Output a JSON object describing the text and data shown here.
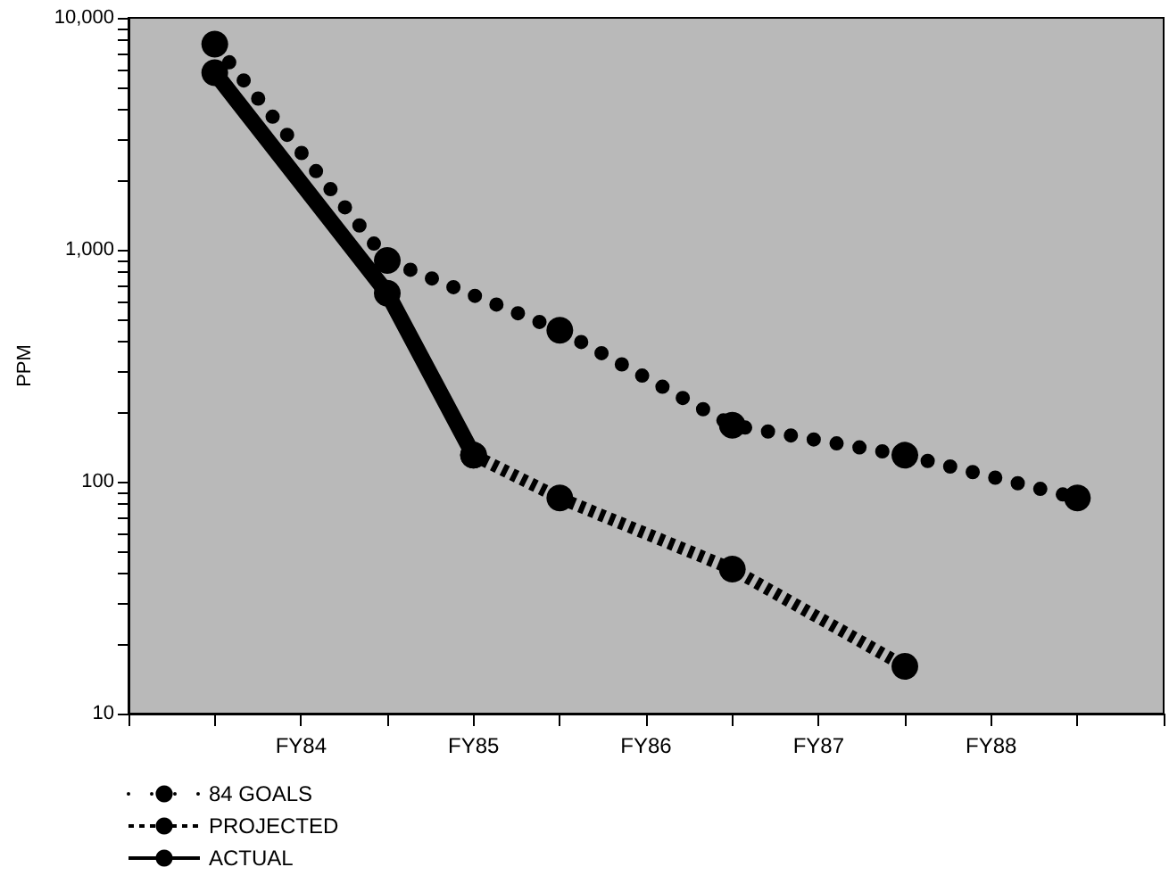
{
  "chart_data": {
    "type": "line",
    "ylabel": "PPM",
    "log": "y",
    "grid": false,
    "legend": "bottom left",
    "marker": "circle",
    "categories": [
      null,
      null,
      "FY84",
      null,
      "FY85",
      null,
      "FY86",
      null,
      "FY87",
      null,
      "FY88",
      null,
      null
    ],
    "ylim": [
      10,
      10000
    ],
    "yticks": [
      {
        "value": 10,
        "label": "10"
      },
      {
        "value": 20,
        "label": null
      },
      {
        "value": 30,
        "label": null
      },
      {
        "value": 40,
        "label": null
      },
      {
        "value": 50,
        "label": null
      },
      {
        "value": 60,
        "label": null
      },
      {
        "value": 70,
        "label": null
      },
      {
        "value": 80,
        "label": null
      },
      {
        "value": 90,
        "label": null
      },
      {
        "value": 100,
        "label": "100"
      },
      {
        "value": 200,
        "label": null
      },
      {
        "value": 300,
        "label": null
      },
      {
        "value": 400,
        "label": null
      },
      {
        "value": 500,
        "label": null
      },
      {
        "value": 600,
        "label": null
      },
      {
        "value": 700,
        "label": null
      },
      {
        "value": 800,
        "label": null
      },
      {
        "value": 900,
        "label": null
      },
      {
        "value": 1000,
        "label": "1,000"
      },
      {
        "value": 2000,
        "label": null
      },
      {
        "value": 3000,
        "label": null
      },
      {
        "value": 4000,
        "label": null
      },
      {
        "value": 5000,
        "label": null
      },
      {
        "value": 6000,
        "label": null
      },
      {
        "value": 7000,
        "label": null
      },
      {
        "value": 8000,
        "label": null
      },
      {
        "value": 9000,
        "label": null
      },
      {
        "value": 10000,
        "label": "10,000"
      }
    ],
    "series": [
      {
        "name": "84 GOALS",
        "color": "#000000",
        "line_style": "dotted",
        "values": [
          null,
          7700,
          null,
          900,
          null,
          450,
          null,
          175,
          null,
          130,
          null,
          85,
          null
        ]
      },
      {
        "name": "PROJECTED",
        "color": "#000000",
        "line_style": "dashed",
        "values": [
          null,
          null,
          null,
          null,
          130,
          85,
          null,
          42,
          null,
          16,
          null,
          null,
          null
        ]
      },
      {
        "name": "ACTUAL",
        "color": "#000000",
        "line_style": "solid",
        "values": [
          null,
          5800,
          null,
          650,
          130,
          null,
          null,
          null,
          null,
          null,
          null,
          null,
          null
        ]
      }
    ]
  }
}
